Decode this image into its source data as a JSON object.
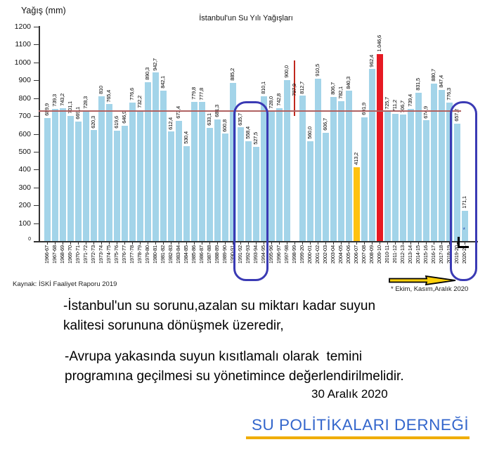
{
  "chart": {
    "title": "İstanbul'un Su Yılı Yağışları",
    "ylabel": "Yağış (mm)",
    "source": "Kaynak: İSKİ Faaliyet Raporu 2019",
    "note": "* Ekim, Kasım,Aralık 2020"
  },
  "chart_data": {
    "type": "bar",
    "title": "İstanbul'un Su Yılı Yağışları",
    "xlabel": "",
    "ylabel": "Yağış (mm)",
    "ylim": [
      0,
      1200
    ],
    "ytick_step": 100,
    "grid": false,
    "legend": false,
    "categories": [
      "1966-67",
      "1967-68",
      "1968-69",
      "1969-70",
      "1970-71",
      "1971-72",
      "1972-73",
      "1973-74",
      "1974-75",
      "1975-76",
      "1976-77",
      "1977-78",
      "1978-79",
      "1979-80",
      "1980-81",
      "1981-82",
      "1982-83",
      "1983-84",
      "1984-85",
      "1985-86",
      "1986-87",
      "1987-88",
      "1988-89",
      "1989-90",
      "1990-91",
      "1991-92",
      "1992-93",
      "1993-94",
      "1994-95",
      "1995-96",
      "1996-97",
      "1997-98",
      "1998-99",
      "1999-20",
      "2000-01",
      "2001-02",
      "2002-03",
      "2003-04",
      "2004-05",
      "2005-06",
      "2006-07",
      "2007-08",
      "2008-09",
      "2009-10",
      "2010-11",
      "2011-12",
      "2012-13",
      "2013-14",
      "2014-15",
      "2015-16",
      "2016-17",
      "2017-18",
      "2018-19",
      "2019-20",
      "2020-21"
    ],
    "values": [
      689.9,
      739.3,
      743.2,
      701.1,
      669.1,
      728.3,
      620.3,
      810,
      765.4,
      619.6,
      646.9,
      776.6,
      732.2,
      890.3,
      942.7,
      842.1,
      612.4,
      673.4,
      530.4,
      779.8,
      777.8,
      633.1,
      681.3,
      600.8,
      885.2,
      635.7,
      558.4,
      527.5,
      810.1,
      728.0,
      742.8,
      900.0,
      797.9,
      812.7,
      560.0,
      910.5,
      606.7,
      806.7,
      782.1,
      840.3,
      413.2,
      691.9,
      962.4,
      1046.6,
      725.7,
      711.2,
      706.7,
      739.4,
      831.5,
      674.9,
      880.7,
      847.4,
      776.3,
      657.2,
      171.1
    ],
    "bar_labels": [
      "689,9",
      "739,3",
      "743,2",
      "701,1",
      "669,1",
      "728,3",
      "620,3",
      "810",
      "765,4",
      "619,6",
      "646,9",
      "776,6",
      "732,2",
      "890,3",
      "942,7",
      "842,1",
      "612,4",
      "673,4",
      "530,4",
      "779,8",
      "777,8",
      "633,1",
      "681,3",
      "600,8",
      "885,2",
      "635,7",
      "558,4",
      "527,5",
      "810,1",
      "728,0",
      "742,8",
      "900,0",
      "797,9",
      "812,7",
      "560,0",
      "910,5",
      "606,7",
      "806,7",
      "782,1",
      "840,3",
      "413,2",
      "691,9",
      "962,4",
      "1.046,6",
      "725,7",
      "711,2",
      "706,7",
      "739,4",
      "831,5",
      "674,9",
      "880,7",
      "847,4",
      "776,3",
      "657,2",
      "171,1"
    ],
    "avg_line": 730,
    "special": {
      "yellow_bar": "2006-07",
      "red_bar": "2009-10",
      "red_marker_line": {
        "category": "1998-99",
        "span": [
          700,
          1010
        ]
      },
      "asterisk_bar": "2020-21"
    },
    "highlight_boxes": [
      [
        "1991-92",
        "1993-94"
      ],
      [
        "2019-20",
        "2020-21"
      ]
    ]
  },
  "colors": {
    "bar": "#A3D4E9",
    "yellow": "#FFC20E",
    "red": "#E61A23",
    "avg_line": "#B06262",
    "marker_line": "#C0281E",
    "highlight": "#3A3AB4",
    "arrow_fill": "#FFD10A",
    "arrow_stroke": "#000000",
    "org_blue": "#3366CC",
    "underline": "#F0AD00"
  },
  "footer": {
    "para1": "-İstanbul'un su sorunu,azalan su miktarı kadar suyun\nkalitesi sorununa dönüşmek üzeredir,",
    "para2": "-Avrupa yakasında suyun kısıtlamalı olarak  temini\nprogramına geçilmesi su yönetimince değerlendirilmelidir.",
    "date": "30 Aralık 2020",
    "org": "SU POLİTİKALARI DERNEĞİ"
  }
}
